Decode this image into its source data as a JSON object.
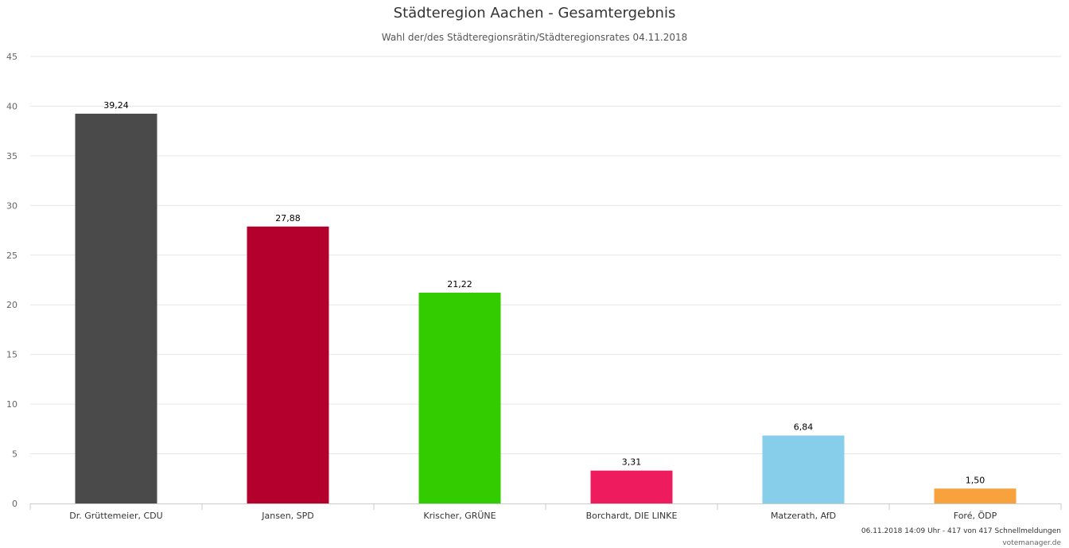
{
  "chart_data": {
    "type": "bar",
    "title": "Städteregion Aachen - Gesamtergebnis",
    "subtitle": "Wahl der/des Städteregionsrätin/Städteregionsrates 04.11.2018",
    "categories": [
      "Dr. Grüttemeier, CDU",
      "Jansen, SPD",
      "Krischer, GRÜNE",
      "Borchardt, DIE LINKE",
      "Matzerath, AfD",
      "Foré, ÖDP"
    ],
    "values": [
      39.24,
      27.88,
      21.22,
      3.31,
      6.84,
      1.5
    ],
    "value_labels": [
      "39,24",
      "27,88",
      "21,22",
      "3,31",
      "6,84",
      "1,50"
    ],
    "colors": [
      "#4a4a4a",
      "#b3002d",
      "#33cc00",
      "#ee1c5e",
      "#87ceeb",
      "#f7a23c"
    ],
    "ylim": [
      0,
      45
    ],
    "yticks": [
      0,
      5,
      10,
      15,
      20,
      25,
      30,
      35,
      40,
      45
    ],
    "xlabel": "",
    "ylabel": "",
    "grid": true,
    "legend": "none"
  },
  "credits": {
    "line1": "06.11.2018 14:09 Uhr - 417 von 417 Schnellmeldungen",
    "line2": "votemanager.de"
  }
}
